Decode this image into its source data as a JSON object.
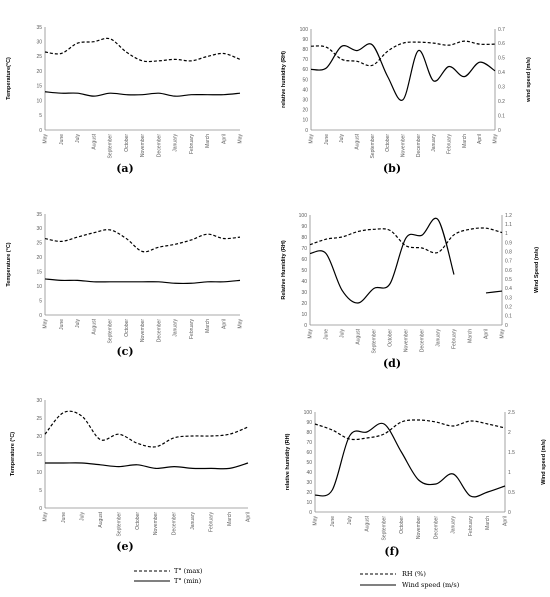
{
  "months13": [
    "May",
    "June",
    "July",
    "August",
    "September",
    "October",
    "November",
    "December",
    "January",
    "February",
    "March",
    "April",
    "May"
  ],
  "months12": [
    "May",
    "June",
    "July",
    "August",
    "September",
    "October",
    "November",
    "December",
    "January",
    "February",
    "March",
    "April"
  ],
  "legend_temp": {
    "max": "T° (max)",
    "min": "T° (min)"
  },
  "legend_rh": {
    "rh": "RH (%)",
    "ws": "Wind speed (m/s)"
  },
  "chart_data": [
    {
      "id": "a",
      "type": "line",
      "label": "(a)",
      "categories": [
        "May",
        "June",
        "July",
        "August",
        "September",
        "October",
        "November",
        "December",
        "January",
        "February",
        "March",
        "April",
        "May"
      ],
      "ylabel": "Temperature(°C)",
      "ylim": [
        0,
        35
      ],
      "yticks": [
        0,
        5,
        10,
        15,
        20,
        25,
        30,
        35
      ],
      "series": [
        {
          "name": "T° (max)",
          "style": "dashed",
          "values": [
            26.5,
            26,
            29.5,
            30,
            31,
            26.5,
            23.5,
            23.5,
            24,
            23.5,
            25,
            26,
            24
          ]
        },
        {
          "name": "T° (min)",
          "style": "solid",
          "values": [
            13,
            12.5,
            12.5,
            11.5,
            12.5,
            12,
            12,
            12.5,
            11.5,
            12,
            12,
            12,
            12.5
          ]
        }
      ]
    },
    {
      "id": "b",
      "type": "line",
      "label": "(b)",
      "categories": [
        "May",
        "June",
        "July",
        "August",
        "September",
        "October",
        "November",
        "December",
        "January",
        "February",
        "March",
        "April",
        "May"
      ],
      "ylabel": "relative humidity (RH)",
      "ylim": [
        0,
        100
      ],
      "yticks": [
        0,
        10,
        20,
        30,
        40,
        50,
        60,
        70,
        80,
        90,
        100
      ],
      "ylabel2": "wind speed (m/s)",
      "ylim2": [
        0,
        0.7
      ],
      "yticks2": [
        0,
        0.1,
        0.2,
        0.3,
        0.4,
        0.5,
        0.6,
        0.7
      ],
      "series": [
        {
          "name": "RH (%)",
          "style": "dashed",
          "axis": "left",
          "values": [
            83,
            82,
            70,
            68,
            64,
            78,
            86,
            87,
            86,
            84,
            88,
            85,
            85
          ]
        },
        {
          "name": "Wind speed (m/s)",
          "style": "solid",
          "axis": "right",
          "values": [
            0.42,
            0.43,
            0.58,
            0.55,
            0.59,
            0.37,
            0.21,
            0.55,
            0.34,
            0.44,
            0.37,
            0.47,
            0.41
          ]
        }
      ]
    },
    {
      "id": "c",
      "type": "line",
      "label": "(c)",
      "categories": [
        "May",
        "June",
        "July",
        "August",
        "September",
        "October",
        "November",
        "December",
        "January",
        "February",
        "March",
        "April",
        "May"
      ],
      "ylabel": "Temperature (°C)",
      "ylim": [
        0,
        35
      ],
      "yticks": [
        0,
        5,
        10,
        15,
        20,
        25,
        30,
        35
      ],
      "series": [
        {
          "name": "T° (max)",
          "style": "dashed",
          "values": [
            26.5,
            25.5,
            27,
            28.5,
            29.5,
            26.5,
            22,
            23.5,
            24.5,
            26,
            28,
            26.5,
            27
          ]
        },
        {
          "name": "T° (min)",
          "style": "solid",
          "values": [
            12.5,
            12,
            12,
            11.5,
            11.5,
            11.5,
            11.5,
            11.5,
            11,
            11,
            11.5,
            11.5,
            12
          ]
        }
      ]
    },
    {
      "id": "d",
      "type": "line",
      "label": "(d)",
      "categories": [
        "May",
        "June",
        "July",
        "August",
        "September",
        "October",
        "November",
        "December",
        "January",
        "February",
        "March",
        "April",
        "May"
      ],
      "ylabel": "Relative Humidity (RH)",
      "ylim": [
        0,
        100
      ],
      "yticks": [
        0,
        10,
        20,
        30,
        40,
        50,
        60,
        70,
        80,
        90,
        100
      ],
      "ylabel2": "Wind Speed (m/s)",
      "ylim2": [
        0,
        1.2
      ],
      "yticks2": [
        0,
        0.1,
        0.2,
        0.3,
        0.4,
        0.5,
        0.6,
        0.7,
        0.8,
        0.9,
        1,
        1.1,
        1.2
      ],
      "series": [
        {
          "name": "RH (%)",
          "style": "dashed",
          "axis": "left",
          "values": [
            73,
            78,
            80,
            85,
            87,
            86,
            72,
            70,
            66,
            82,
            87,
            88,
            84
          ]
        },
        {
          "name": "Wind speed (m/s)",
          "style": "solid",
          "axis": "right",
          "values": [
            0.78,
            0.78,
            0.38,
            0.24,
            0.4,
            0.45,
            0.95,
            0.98,
            1.15,
            0.55,
            null,
            0.35,
            0.37
          ]
        }
      ]
    },
    {
      "id": "e",
      "type": "line",
      "label": "(e)",
      "categories": [
        "May",
        "June",
        "July",
        "August",
        "September",
        "October",
        "November",
        "December",
        "January",
        "February",
        "March",
        "April"
      ],
      "ylabel": "Temperature (°C)",
      "ylim": [
        0,
        30
      ],
      "yticks": [
        0,
        5,
        10,
        15,
        20,
        25,
        30
      ],
      "series": [
        {
          "name": "T° (max)",
          "style": "dashed",
          "values": [
            20.5,
            26.5,
            25.5,
            19,
            20.5,
            18,
            17,
            19.5,
            20,
            20,
            20.5,
            22.5
          ]
        },
        {
          "name": "T° (min)",
          "style": "solid",
          "values": [
            12.5,
            12.5,
            12.5,
            12,
            11.5,
            12,
            11,
            11.5,
            11,
            11,
            11,
            12.5
          ]
        }
      ]
    },
    {
      "id": "f",
      "type": "line",
      "label": "(f)",
      "categories": [
        "May",
        "June",
        "July",
        "August",
        "September",
        "October",
        "November",
        "December",
        "January",
        "February",
        "March",
        "April"
      ],
      "ylabel": "relative humidity (RH)",
      "ylim": [
        0,
        100
      ],
      "yticks": [
        0,
        10,
        20,
        30,
        40,
        50,
        60,
        70,
        80,
        90,
        100
      ],
      "ylabel2": "Wind speed (m/s)",
      "ylim2": [
        0,
        2.5
      ],
      "yticks2": [
        0,
        0.5,
        1,
        1.5,
        2,
        2.5
      ],
      "series": [
        {
          "name": "RH (%)",
          "style": "dashed",
          "axis": "left",
          "values": [
            88,
            82,
            73,
            74,
            78,
            90,
            92,
            90,
            86,
            91,
            88,
            84
          ]
        },
        {
          "name": "Wind speed (m/s)",
          "style": "solid",
          "axis": "right",
          "values": [
            0.42,
            0.55,
            1.9,
            2.0,
            2.2,
            1.5,
            0.8,
            0.7,
            0.95,
            0.4,
            0.5,
            0.65
          ]
        }
      ]
    }
  ]
}
